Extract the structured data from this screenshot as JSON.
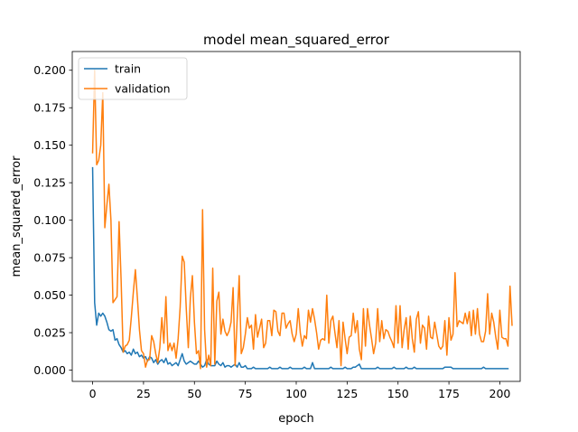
{
  "chart_data": {
    "type": "line",
    "title": "model mean_squared_error",
    "xlabel": "epoch",
    "ylabel": "mean_squared_error",
    "xlim": [
      -10,
      210
    ],
    "ylim": [
      -0.0075,
      0.2125
    ],
    "xticks": [
      0,
      25,
      50,
      75,
      100,
      125,
      150,
      175,
      200
    ],
    "yticks": [
      0.0,
      0.025,
      0.05,
      0.075,
      0.1,
      0.125,
      0.15,
      0.175,
      0.2
    ],
    "ytick_labels": [
      "0.000",
      "0.025",
      "0.050",
      "0.075",
      "0.100",
      "0.125",
      "0.150",
      "0.175",
      "0.200"
    ],
    "grid": false,
    "legend_position": "top-left",
    "series": [
      {
        "name": "train",
        "color": "#1f77b4",
        "values": [
          0.135,
          0.045,
          0.03,
          0.038,
          0.036,
          0.038,
          0.036,
          0.032,
          0.027,
          0.026,
          0.027,
          0.02,
          0.021,
          0.017,
          0.015,
          0.012,
          0.013,
          0.011,
          0.012,
          0.01,
          0.014,
          0.011,
          0.012,
          0.009,
          0.01,
          0.008,
          0.009,
          0.006,
          0.009,
          0.008,
          0.005,
          0.007,
          0.004,
          0.006,
          0.007,
          0.005,
          0.008,
          0.004,
          0.005,
          0.003,
          0.004,
          0.005,
          0.003,
          0.007,
          0.011,
          0.006,
          0.004,
          0.005,
          0.006,
          0.005,
          0.004,
          0.004,
          0.006,
          0.004,
          0.002,
          0.003,
          0.007,
          0.004,
          0.003,
          0.003,
          0.003,
          0.006,
          0.004,
          0.003,
          0.005,
          0.002,
          0.003,
          0.003,
          0.002,
          0.003,
          0.004,
          0.002,
          0.005,
          0.002,
          0.002,
          0.003,
          0.001,
          0.001,
          0.001,
          0.002,
          0.001,
          0.001,
          0.001,
          0.001,
          0.001,
          0.001,
          0.001,
          0.002,
          0.001,
          0.001,
          0.001,
          0.001,
          0.002,
          0.001,
          0.001,
          0.001,
          0.001,
          0.002,
          0.001,
          0.001,
          0.001,
          0.001,
          0.001,
          0.001,
          0.002,
          0.001,
          0.001,
          0.001,
          0.005,
          0.001,
          0.001,
          0.001,
          0.001,
          0.001,
          0.001,
          0.001,
          0.001,
          0.002,
          0.001,
          0.001,
          0.001,
          0.001,
          0.001,
          0.001,
          0.002,
          0.001,
          0.001,
          0.001,
          0.002,
          0.002,
          0.003,
          0.004,
          0.001,
          0.001,
          0.001,
          0.001,
          0.001,
          0.001,
          0.001,
          0.001,
          0.002,
          0.001,
          0.001,
          0.001,
          0.001,
          0.001,
          0.001,
          0.001,
          0.002,
          0.001,
          0.001,
          0.001,
          0.001,
          0.001,
          0.002,
          0.001,
          0.001,
          0.001,
          0.002,
          0.001,
          0.001,
          0.001,
          0.001,
          0.001,
          0.001,
          0.001,
          0.001,
          0.001,
          0.001,
          0.001,
          0.001,
          0.001,
          0.001,
          0.002,
          0.002,
          0.002,
          0.002,
          0.001,
          0.001,
          0.001,
          0.001,
          0.001,
          0.001,
          0.001,
          0.001,
          0.001,
          0.001,
          0.001,
          0.001,
          0.001,
          0.001,
          0.001,
          0.002,
          0.001,
          0.001,
          0.001,
          0.001,
          0.001,
          0.001,
          0.001,
          0.001,
          0.001,
          0.001,
          0.001,
          0.001
        ]
      },
      {
        "name": "validation",
        "color": "#ff7f0e",
        "values": [
          0.145,
          0.2,
          0.137,
          0.14,
          0.15,
          0.185,
          0.095,
          0.11,
          0.124,
          0.1,
          0.045,
          0.047,
          0.049,
          0.099,
          0.06,
          0.012,
          0.016,
          0.017,
          0.02,
          0.035,
          0.052,
          0.067,
          0.048,
          0.027,
          0.013,
          0.011,
          0.002,
          0.007,
          0.007,
          0.023,
          0.019,
          0.011,
          0.005,
          0.015,
          0.035,
          0.018,
          0.049,
          0.013,
          0.018,
          0.013,
          0.018,
          0.008,
          0.021,
          0.042,
          0.076,
          0.072,
          0.041,
          0.015,
          0.048,
          0.063,
          0.032,
          0.011,
          0.013,
          0.001,
          0.107,
          0.027,
          0.002,
          0.01,
          0.003,
          0.068,
          0.004,
          0.046,
          0.052,
          0.024,
          0.034,
          0.026,
          0.023,
          0.026,
          0.032,
          0.055,
          0.003,
          0.034,
          0.063,
          0.011,
          0.015,
          0.024,
          0.035,
          0.028,
          0.03,
          0.014,
          0.037,
          0.022,
          0.028,
          0.034,
          0.015,
          0.018,
          0.033,
          0.033,
          0.023,
          0.04,
          0.039,
          0.026,
          0.023,
          0.038,
          0.038,
          0.028,
          0.031,
          0.033,
          0.024,
          0.019,
          0.024,
          0.041,
          0.025,
          0.016,
          0.023,
          0.021,
          0.04,
          0.032,
          0.041,
          0.034,
          0.025,
          0.014,
          0.02,
          0.021,
          0.02,
          0.05,
          0.018,
          0.033,
          0.036,
          0.025,
          0.015,
          0.033,
          0.003,
          0.032,
          0.021,
          0.011,
          0.022,
          0.023,
          0.038,
          0.025,
          0.033,
          0.014,
          0.007,
          0.041,
          0.016,
          0.041,
          0.03,
          0.021,
          0.011,
          0.018,
          0.041,
          0.019,
          0.033,
          0.021,
          0.027,
          0.026,
          0.022,
          0.019,
          0.015,
          0.043,
          0.018,
          0.043,
          0.015,
          0.027,
          0.035,
          0.014,
          0.036,
          0.021,
          0.012,
          0.034,
          0.039,
          0.018,
          0.03,
          0.028,
          0.014,
          0.036,
          0.022,
          0.021,
          0.032,
          0.024,
          0.016,
          0.014,
          0.016,
          0.033,
          0.01,
          0.035,
          0.02,
          0.024,
          0.065,
          0.029,
          0.033,
          0.032,
          0.031,
          0.038,
          0.031,
          0.039,
          0.023,
          0.04,
          0.024,
          0.041,
          0.024,
          0.019,
          0.019,
          0.026,
          0.051,
          0.024,
          0.038,
          0.032,
          0.022,
          0.014,
          0.04,
          0.022,
          0.021,
          0.021,
          0.016,
          0.056,
          0.03
        ]
      }
    ]
  }
}
